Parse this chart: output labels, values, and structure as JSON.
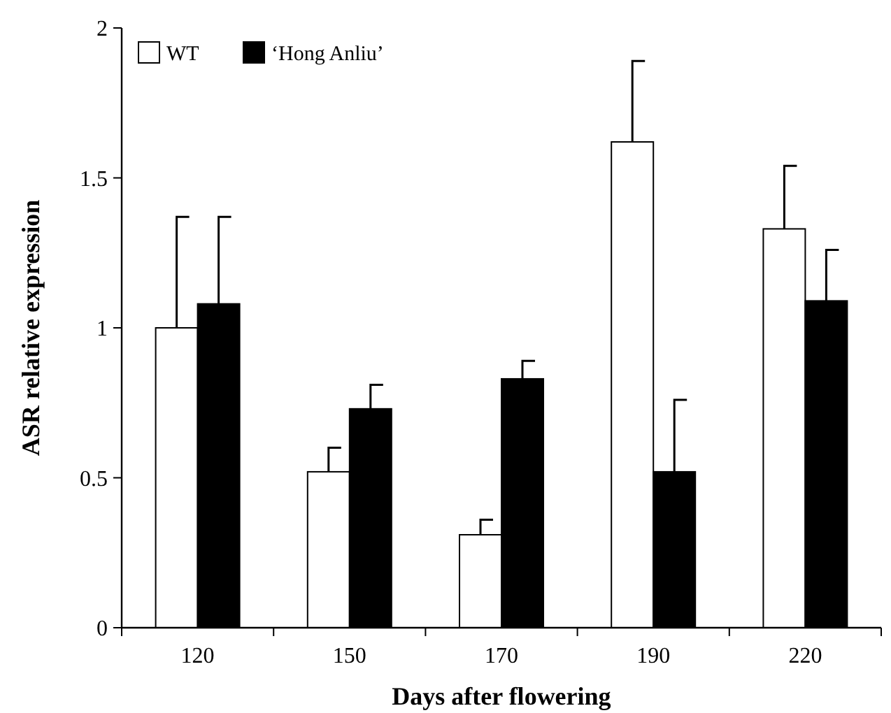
{
  "chart_data": {
    "type": "bar",
    "xlabel": "Days after flowering",
    "ylabel": "ASR relative expression",
    "categories": [
      "120",
      "150",
      "170",
      "190",
      "220"
    ],
    "series": [
      {
        "name": "WT",
        "color": "#ffffff",
        "values": [
          1.0,
          0.52,
          0.31,
          1.62,
          1.33
        ],
        "errors": [
          [
            1.0,
            1.37
          ],
          [
            0.52,
            0.6
          ],
          [
            0.31,
            0.36
          ],
          [
            1.62,
            1.89
          ],
          [
            1.33,
            1.54
          ]
        ]
      },
      {
        "name": "‘Hong Anliu’",
        "color": "#000000",
        "values": [
          1.08,
          0.73,
          0.83,
          0.52,
          1.09
        ],
        "errors": [
          [
            1.08,
            1.37
          ],
          [
            0.73,
            0.81
          ],
          [
            0.83,
            0.89
          ],
          [
            0.52,
            0.76
          ],
          [
            1.09,
            1.26
          ]
        ]
      }
    ],
    "ylim": [
      0,
      2
    ],
    "yticks": [
      0,
      0.5,
      1,
      1.5,
      2
    ],
    "grid": false,
    "legend": "top left"
  }
}
